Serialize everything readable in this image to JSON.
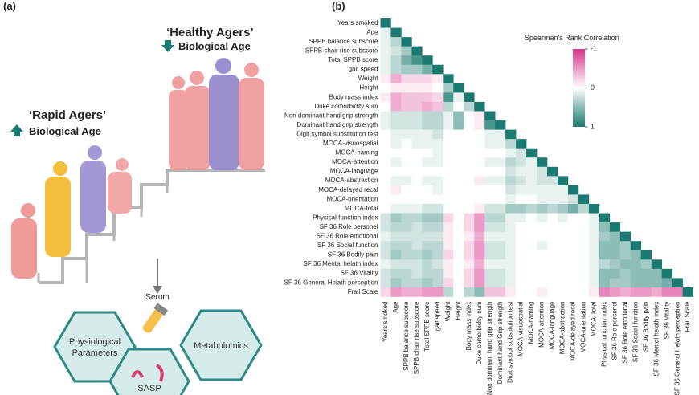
{
  "panel_a": {
    "label": "(a)",
    "healthy_title": "‘Healthy Agers’",
    "healthy_sub": "Biological Age",
    "rapid_title": "‘Rapid Agers’",
    "rapid_sub": "Biological Age",
    "serum": "Serum",
    "hex_physio": [
      "Physiological",
      "Parameters"
    ],
    "hex_metab": "Metabolomics",
    "hex_sasp": "SASP"
  },
  "chart_data": {
    "type": "heatmap",
    "panel_label": "(b)",
    "colorbar_title": "Spearman's Rank Correlation",
    "colormap": [
      "#d6338a",
      "#ffffff",
      "#1b7a6f"
    ],
    "clim": [
      -1,
      1
    ],
    "cticks": [
      -1,
      0,
      1
    ],
    "y_labels": [
      "Years smoked",
      "Age",
      "SPPB balance subscore",
      "SPPB chair rise subscore",
      "Total SPPB score",
      "gait speed",
      "Weight",
      "Height",
      "Body mass index",
      "Duke comorbidity sum",
      "Non dominant hand grip strength",
      "Dominant hand grip strength",
      "Digit symbol substitution test",
      "MOCA-visuospatial",
      "MOCA-naming",
      "MOCA-attention",
      "MOCA-language",
      "MOCA-abstraction",
      "MOCA-delayed recal",
      "MOCA-orientation",
      "MOCA-total",
      "Physical function index",
      "SF 36 Role personel",
      "SF 36 Role emotional",
      "SF 36 Social function",
      "SF 36 Bodily pain",
      "SF 36 Mental helath index",
      "SF 36 Vitality",
      "SF 36 General Helath perception",
      "Frail Scale"
    ],
    "x_labels": [
      "Years smoked",
      "Age",
      "SPPB balance subscore",
      "SPPB chair rise subscore",
      "Total SPPB score",
      "gait speed",
      "Weight",
      "Height",
      "Body mass index",
      "Duke comorbidity sum",
      "Non dominant hand grip strength",
      "Dominant hand Grip strength",
      "Digit symbol substitution test",
      "MOCA-visuospatial",
      "MOCA-naming",
      "MOCA-attention",
      "MOCA-language",
      "MOCA-abstraction",
      "MOCA-delayed recal",
      "MOCA-orientation",
      "MOCA-Total",
      "Physical function index",
      "SF 36 Role personel",
      "SF 36 Role emotional",
      "SF 36 Social function",
      "SF 36 Bodily pain",
      "SF 36 Mental helath index",
      "SF 36 Vitality",
      "SF 36 General Helath perception",
      "Frail Scale"
    ],
    "values": [
      [
        1
      ],
      [
        0.1,
        1
      ],
      [
        0.1,
        0.3,
        1
      ],
      [
        0.1,
        0.2,
        0.4,
        1
      ],
      [
        0.1,
        0.3,
        0.6,
        0.8,
        1
      ],
      [
        0.1,
        0.3,
        0.4,
        0.4,
        0.6,
        1
      ],
      [
        -0.1,
        -0.4,
        -0.2,
        -0.2,
        -0.2,
        -0.1,
        1
      ],
      [
        0,
        -0.1,
        -0.1,
        -0.1,
        -0.1,
        0,
        0.4,
        1
      ],
      [
        -0.1,
        -0.4,
        -0.3,
        -0.3,
        -0.3,
        -0.2,
        0.8,
        0.1,
        1
      ],
      [
        0,
        -0.4,
        -0.3,
        -0.3,
        -0.4,
        -0.3,
        0.3,
        0,
        0.3,
        1
      ],
      [
        0.1,
        0.2,
        0.2,
        0.2,
        0.3,
        0.3,
        0.1,
        0.5,
        0,
        -0.1,
        1
      ],
      [
        0.1,
        0.2,
        0.2,
        0.2,
        0.3,
        0.3,
        0.1,
        0.5,
        0,
        -0.1,
        0.8,
        1
      ],
      [
        0,
        0.1,
        0.1,
        0.1,
        0.1,
        0.2,
        0,
        0,
        0,
        0,
        0.1,
        0.1,
        1
      ],
      [
        0,
        0.1,
        0,
        0.1,
        0.1,
        0.1,
        0,
        0,
        0,
        0,
        0.1,
        0.1,
        0.3,
        1
      ],
      [
        0,
        0,
        0,
        0,
        0,
        0.1,
        0,
        0,
        0,
        0,
        0,
        0,
        0.1,
        0.2,
        1
      ],
      [
        0,
        0.1,
        0,
        0,
        0.1,
        0.1,
        0,
        0,
        0,
        0,
        0.1,
        0.1,
        0.3,
        0.2,
        0.1,
        1
      ],
      [
        0,
        0,
        0,
        0,
        0,
        0,
        0,
        0,
        0,
        0,
        0,
        0,
        0.2,
        0.1,
        0.1,
        0.2,
        1
      ],
      [
        0,
        0.1,
        0.1,
        0,
        0.1,
        0.1,
        0,
        0,
        0,
        -0.1,
        0.1,
        0.1,
        0.3,
        0.2,
        0.1,
        0.2,
        0.2,
        1
      ],
      [
        0,
        -0.1,
        0,
        0,
        0,
        0.1,
        0,
        0,
        0,
        0,
        0,
        0,
        0.2,
        0.1,
        0.1,
        0.1,
        0.1,
        0.1,
        1
      ],
      [
        0,
        0,
        0,
        0,
        0,
        0,
        0,
        0,
        0,
        0,
        0,
        0,
        0.1,
        0,
        0,
        0.1,
        0.1,
        0.1,
        0.2,
        1
      ],
      [
        0,
        0.1,
        0.1,
        0.1,
        0.2,
        0.2,
        0,
        0,
        0,
        -0.1,
        0.2,
        0.2,
        0.4,
        0.4,
        0.3,
        0.4,
        0.3,
        0.4,
        0.6,
        0.3,
        1
      ],
      [
        0.2,
        0.4,
        0.3,
        0.3,
        0.4,
        0.4,
        -0.2,
        0,
        -0.2,
        -0.5,
        0.3,
        0.3,
        0.1,
        0.1,
        0,
        0.1,
        0,
        0.1,
        0,
        0,
        0.1,
        1
      ],
      [
        0.2,
        0.3,
        0.3,
        0.2,
        0.3,
        0.3,
        -0.1,
        0,
        -0.2,
        -0.5,
        0.2,
        0.2,
        0.1,
        0,
        0,
        0,
        0,
        0,
        0,
        0,
        0.1,
        0.5,
        1
      ],
      [
        0.1,
        0.2,
        0.2,
        0.2,
        0.2,
        0.2,
        -0.1,
        0,
        -0.1,
        -0.4,
        0.1,
        0.1,
        0.1,
        0,
        0,
        0,
        0,
        0,
        0,
        0,
        0.1,
        0.4,
        0.5,
        1
      ],
      [
        0.2,
        0.3,
        0.3,
        0.2,
        0.3,
        0.3,
        -0.1,
        0,
        -0.2,
        -0.5,
        0.2,
        0.2,
        0.1,
        0,
        0,
        0.1,
        0,
        0,
        0,
        0,
        0.1,
        0.5,
        0.5,
        0.4,
        1
      ],
      [
        0.2,
        0.4,
        0.3,
        0.3,
        0.4,
        0.3,
        -0.2,
        0,
        -0.2,
        -0.5,
        0.2,
        0.2,
        0.1,
        0,
        0,
        0,
        0,
        0,
        0,
        0,
        0.1,
        0.5,
        0.5,
        0.4,
        0.5,
        1
      ],
      [
        0.1,
        0.2,
        0.2,
        0.2,
        0.3,
        0.2,
        -0.1,
        0,
        -0.1,
        -0.4,
        0.1,
        0.1,
        0.1,
        0,
        0,
        0,
        0,
        0,
        0,
        0,
        0.1,
        0.3,
        0.4,
        0.5,
        0.5,
        0.4,
        1
      ],
      [
        0.2,
        0.3,
        0.3,
        0.2,
        0.3,
        0.3,
        -0.1,
        0,
        -0.2,
        -0.5,
        0.2,
        0.2,
        0.1,
        0,
        0,
        0,
        0,
        0,
        0,
        0,
        0.1,
        0.5,
        0.5,
        0.4,
        0.5,
        0.5,
        0.5,
        1
      ],
      [
        0.2,
        0.4,
        0.3,
        0.3,
        0.4,
        0.3,
        -0.2,
        0,
        -0.2,
        -0.5,
        0.2,
        0.2,
        0.1,
        0,
        0,
        0,
        0,
        0,
        0,
        0,
        0.1,
        0.5,
        0.4,
        0.4,
        0.5,
        0.5,
        0.5,
        0.6,
        1
      ],
      [
        -0.2,
        -0.5,
        -0.4,
        -0.4,
        -0.5,
        -0.5,
        0.3,
        0,
        0.3,
        0.5,
        -0.3,
        -0.3,
        -0.1,
        0,
        0,
        -0.1,
        0,
        0,
        0,
        0,
        -0.1,
        -0.6,
        -0.5,
        -0.4,
        -0.5,
        -0.5,
        -0.4,
        -0.6,
        -0.6,
        1
      ]
    ]
  }
}
